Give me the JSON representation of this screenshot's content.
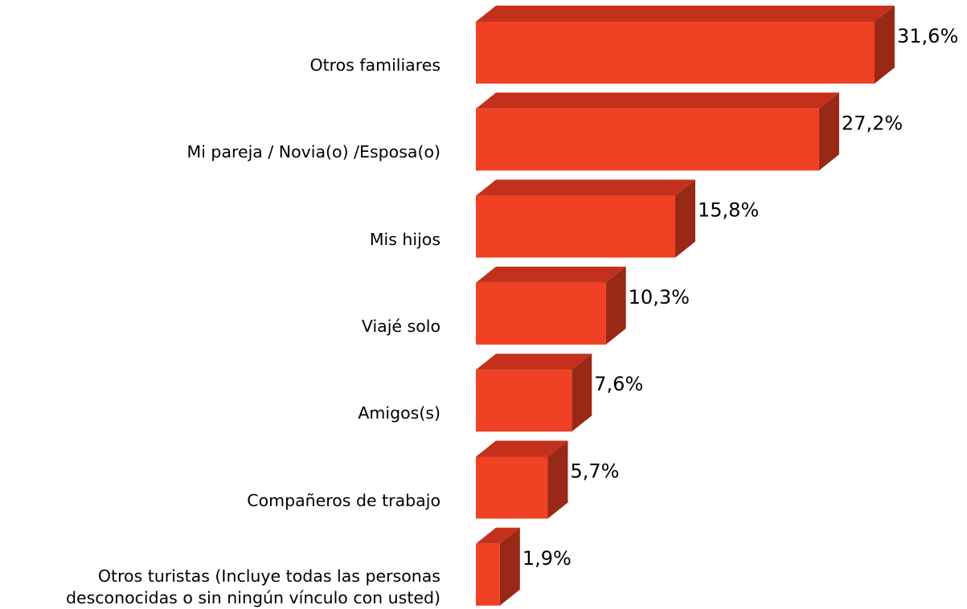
{
  "chart_data": {
    "type": "bar",
    "orientation": "horizontal",
    "categories": [
      "Otros familiares",
      "Mi pareja / Novia(o) /Esposa(o)",
      "Mis hijos",
      "Viajé solo",
      "Amigos(s)",
      "Compañeros de trabajo",
      "Otros turistas (Incluye todas las personas desconocidas o sin ningún vínculo con usted)"
    ],
    "values": [
      31.6,
      27.2,
      15.8,
      10.3,
      7.6,
      5.7,
      1.9
    ],
    "value_labels": [
      "31,6%",
      "27,2%",
      "15,8%",
      "10,3%",
      "7,6%",
      "5,7%",
      "1,9%"
    ],
    "color": "#f04124"
  }
}
